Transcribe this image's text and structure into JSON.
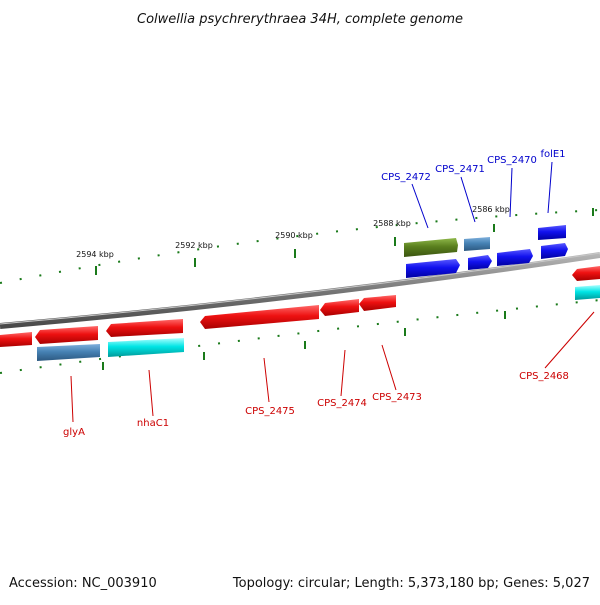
{
  "title": "Colwellia psychrerythraea 34H, complete genome",
  "footer": {
    "accession": "Accession: NC_003910",
    "summary": "Topology: circular; Length: 5,373,180 bp; Genes: 5,027"
  },
  "scale_labels": [
    "2594 kbp",
    "2592 kbp",
    "2590 kbp",
    "2588 kbp",
    "2586 kbp"
  ],
  "colors": {
    "backbone": "#808080",
    "tick": "#1a7a1a",
    "gene_red": "#ee1111",
    "gene_blue": "#1111ee",
    "gene_steel": "#4682b4",
    "gene_cyan": "#00e5e5",
    "gene_olive": "#5a7f1e",
    "label_blue": "#0000cc",
    "label_red": "#cc0000"
  },
  "gene_labels": {
    "top": [
      "CPS_2472",
      "CPS_2471",
      "CPS_2470",
      "folE1"
    ],
    "bottom": [
      "glyA",
      "nhaC1",
      "CPS_2475",
      "CPS_2474",
      "CPS_2473",
      "CPS_2468"
    ]
  }
}
